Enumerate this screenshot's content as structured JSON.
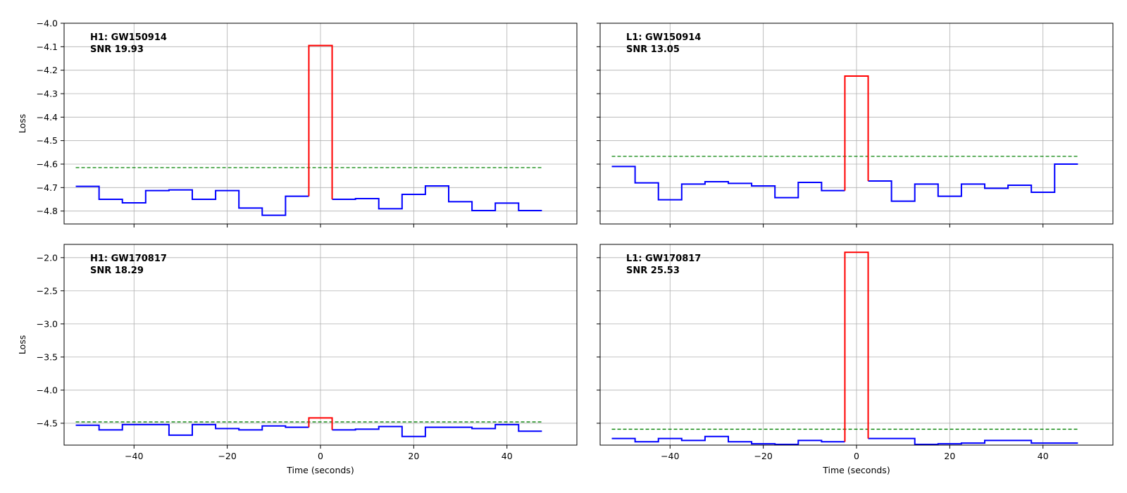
{
  "chart_data": [
    {
      "type": "line",
      "title": "",
      "annotation": [
        "H1: GW150914",
        "SNR 19.93"
      ],
      "xlabel": "",
      "ylabel": "Loss",
      "xlim": [
        -55,
        55
      ],
      "ylim": [
        -4.855,
        -4.0
      ],
      "xticks": [
        -40,
        -20,
        0,
        20,
        40
      ],
      "yticks": [
        -4.8,
        -4.7,
        -4.6,
        -4.5,
        -4.4,
        -4.3,
        -4.2,
        -4.1,
        -4.0
      ],
      "threshold": -4.615,
      "x": [
        -50,
        -45,
        -40,
        -35,
        -30,
        -25,
        -20,
        -15,
        -10,
        -5,
        0,
        5,
        10,
        15,
        20,
        25,
        30,
        35,
        40,
        45
      ],
      "y": [
        -4.695,
        -4.75,
        -4.765,
        -4.713,
        -4.71,
        -4.75,
        -4.713,
        -4.787,
        -4.818,
        -4.737,
        -4.095,
        -4.75,
        -4.747,
        -4.79,
        -4.729,
        -4.693,
        -4.76,
        -4.798,
        -4.766,
        -4.798
      ]
    },
    {
      "type": "line",
      "title": "",
      "annotation": [
        "L1: GW150914",
        "SNR 13.05"
      ],
      "xlabel": "",
      "ylabel": "",
      "xlim": [
        -55,
        55
      ],
      "ylim": [
        -4.855,
        -4.0
      ],
      "xticks": [
        -40,
        -20,
        0,
        20,
        40
      ],
      "yticks": [
        -4.8,
        -4.7,
        -4.6,
        -4.5,
        -4.4,
        -4.3,
        -4.2,
        -4.1,
        -4.0
      ],
      "threshold": -4.567,
      "x": [
        -50,
        -45,
        -40,
        -35,
        -30,
        -25,
        -20,
        -15,
        -10,
        -5,
        0,
        5,
        10,
        15,
        20,
        25,
        30,
        35,
        40,
        45
      ],
      "y": [
        -4.61,
        -4.68,
        -4.752,
        -4.685,
        -4.675,
        -4.682,
        -4.693,
        -4.743,
        -4.678,
        -4.713,
        -4.225,
        -4.672,
        -4.758,
        -4.685,
        -4.737,
        -4.685,
        -4.703,
        -4.69,
        -4.72,
        -4.6
      ]
    },
    {
      "type": "line",
      "title": "",
      "annotation": [
        "H1: GW170817",
        "SNR 18.29"
      ],
      "xlabel": "Time (seconds)",
      "ylabel": "Loss",
      "xlim": [
        -55,
        55
      ],
      "ylim": [
        -4.83,
        -1.8
      ],
      "xticks": [
        -40,
        -20,
        0,
        20,
        40
      ],
      "yticks": [
        -4.5,
        -4.0,
        -3.5,
        -3.0,
        -2.5,
        -2.0
      ],
      "threshold": -4.48,
      "x": [
        -50,
        -45,
        -40,
        -35,
        -30,
        -25,
        -20,
        -15,
        -10,
        -5,
        0,
        5,
        10,
        15,
        20,
        25,
        30,
        35,
        40,
        45
      ],
      "y": [
        -4.53,
        -4.6,
        -4.52,
        -4.52,
        -4.68,
        -4.52,
        -4.58,
        -4.6,
        -4.54,
        -4.56,
        -4.42,
        -4.6,
        -4.59,
        -4.55,
        -4.7,
        -4.56,
        -4.56,
        -4.58,
        -4.52,
        -4.62
      ]
    },
    {
      "type": "line",
      "title": "",
      "annotation": [
        "L1: GW170817",
        "SNR 25.53"
      ],
      "xlabel": "Time (seconds)",
      "ylabel": "",
      "xlim": [
        -55,
        55
      ],
      "ylim": [
        -4.83,
        -1.8
      ],
      "xticks": [
        -40,
        -20,
        0,
        20,
        40
      ],
      "yticks": [
        -4.5,
        -4.0,
        -3.5,
        -3.0,
        -2.5,
        -2.0
      ],
      "threshold": -4.59,
      "x": [
        -50,
        -45,
        -40,
        -35,
        -30,
        -25,
        -20,
        -15,
        -10,
        -5,
        0,
        5,
        10,
        15,
        20,
        25,
        30,
        35,
        40,
        45
      ],
      "y": [
        -4.73,
        -4.78,
        -4.73,
        -4.76,
        -4.7,
        -4.78,
        -4.81,
        -4.82,
        -4.76,
        -4.78,
        -1.92,
        -4.73,
        -4.73,
        -4.82,
        -4.81,
        -4.8,
        -4.76,
        -4.76,
        -4.8,
        -4.8
      ]
    }
  ],
  "colors": {
    "background_series": "#0000ff",
    "event_series": "#ff0000",
    "threshold": "#008000",
    "grid": "#b0b0b0"
  }
}
